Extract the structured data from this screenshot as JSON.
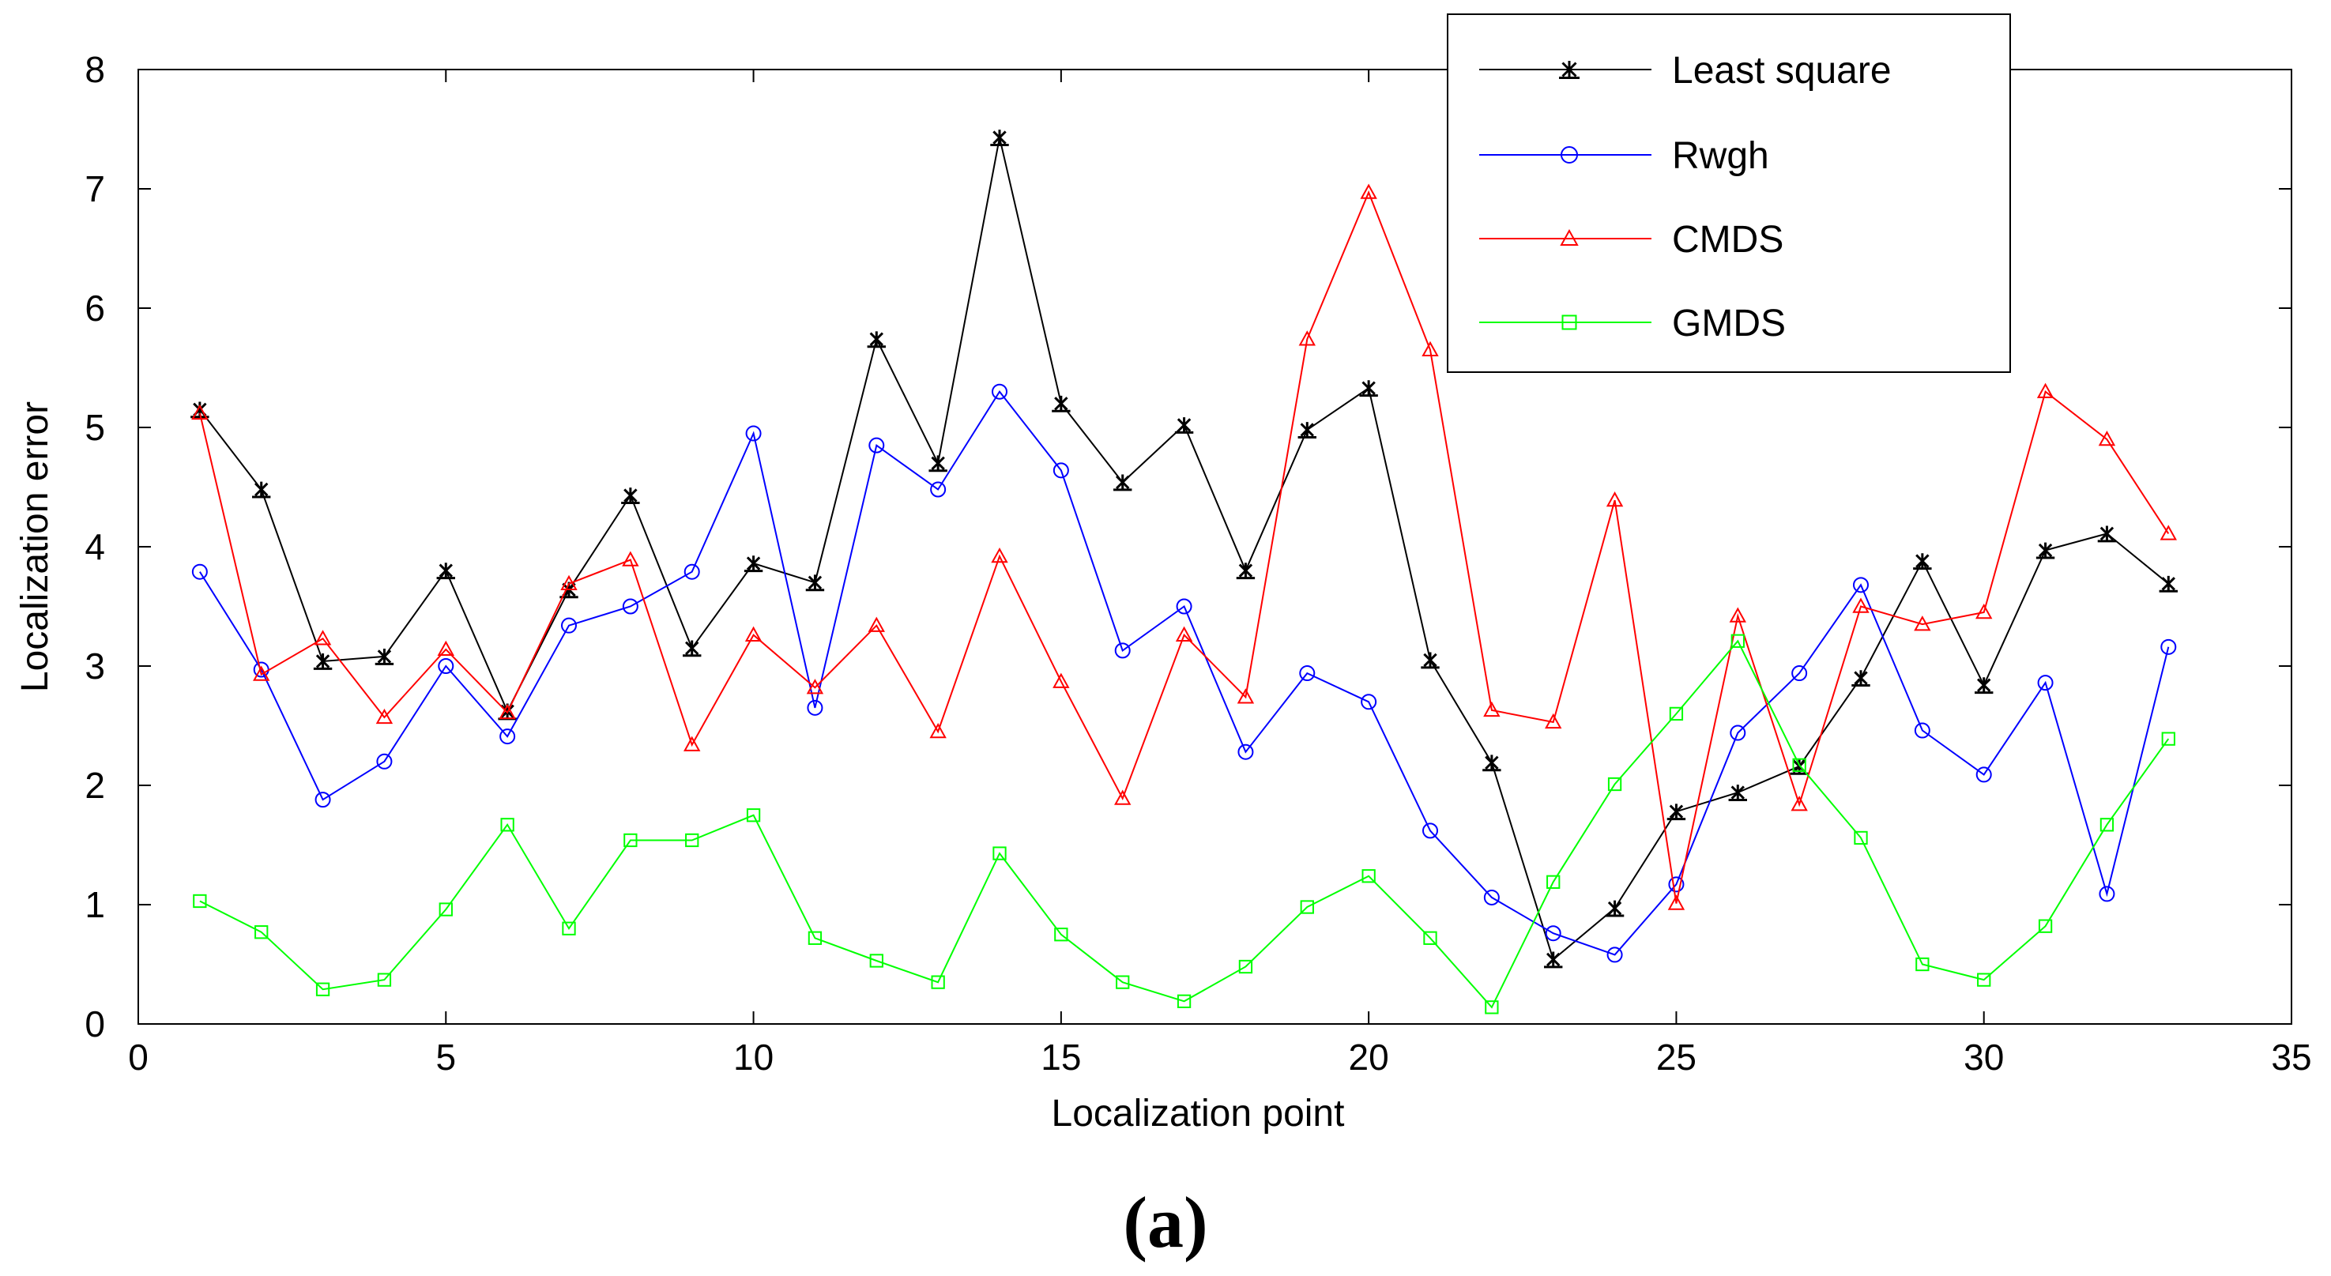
{
  "caption": "(a)",
  "chart_data": {
    "type": "line",
    "xlabel": "Localization point",
    "ylabel": "Localization error",
    "xlim": [
      0,
      35
    ],
    "ylim": [
      0,
      8
    ],
    "xticks": [
      0,
      5,
      10,
      15,
      20,
      25,
      30,
      35
    ],
    "yticks": [
      0,
      1,
      2,
      3,
      4,
      5,
      6,
      7,
      8
    ],
    "grid": false,
    "legend_position": "top-right",
    "x": [
      1,
      2,
      3,
      4,
      5,
      6,
      7,
      8,
      9,
      10,
      11,
      12,
      13,
      14,
      15,
      16,
      17,
      18,
      19,
      20,
      21,
      22,
      23,
      24,
      25,
      26,
      27,
      28,
      29,
      30,
      31,
      32,
      33
    ],
    "series": [
      {
        "name": "Least square",
        "color": "#000000",
        "marker": "asterisk",
        "values": [
          5.15,
          4.48,
          3.04,
          3.08,
          3.8,
          2.62,
          3.64,
          4.43,
          3.15,
          3.86,
          3.7,
          5.74,
          4.7,
          7.43,
          5.2,
          4.54,
          5.02,
          3.8,
          4.98,
          5.33,
          3.05,
          2.19,
          0.54,
          0.97,
          1.78,
          1.94,
          2.16,
          2.9,
          3.88,
          2.84,
          3.97,
          4.11,
          3.69
        ]
      },
      {
        "name": "Rwgh",
        "color": "#0000ff",
        "marker": "circle",
        "values": [
          3.79,
          2.97,
          1.88,
          2.2,
          3.0,
          2.41,
          3.34,
          3.5,
          3.79,
          4.95,
          2.65,
          4.85,
          4.48,
          5.3,
          4.64,
          3.13,
          3.5,
          2.28,
          2.94,
          2.7,
          1.62,
          1.06,
          0.76,
          0.58,
          1.17,
          2.44,
          2.94,
          3.68,
          2.46,
          2.09,
          2.86,
          1.09,
          3.16
        ]
      },
      {
        "name": "CMDS",
        "color": "#ff0000",
        "marker": "triangle",
        "values": [
          5.12,
          2.93,
          3.23,
          2.57,
          3.14,
          2.61,
          3.69,
          3.89,
          2.34,
          3.26,
          2.82,
          3.34,
          2.45,
          3.92,
          2.87,
          1.89,
          3.26,
          2.74,
          5.74,
          6.97,
          5.65,
          2.63,
          2.53,
          4.39,
          1.01,
          3.42,
          1.84,
          3.5,
          3.35,
          3.45,
          5.3,
          4.9,
          4.11
        ]
      },
      {
        "name": "GMDS",
        "color": "#00ff00",
        "marker": "square",
        "values": [
          1.03,
          0.77,
          0.29,
          0.37,
          0.96,
          1.67,
          0.8,
          1.54,
          1.54,
          1.75,
          0.72,
          0.53,
          0.35,
          1.43,
          0.75,
          0.35,
          0.19,
          0.48,
          0.98,
          1.24,
          0.72,
          0.14,
          1.19,
          2.01,
          2.6,
          3.21,
          2.17,
          1.56,
          0.5,
          0.37,
          0.82,
          1.67,
          2.39
        ]
      }
    ]
  }
}
